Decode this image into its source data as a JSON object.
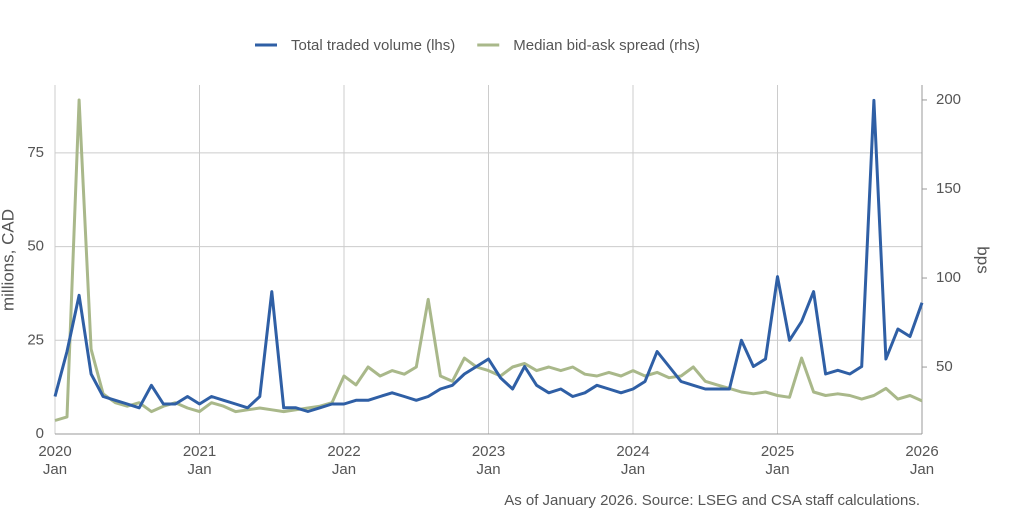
{
  "chart_data": {
    "type": "line",
    "ylabel": "millions, CAD",
    "y2label": "bps",
    "note": "As of January 2026. Source: LSEG and CSA staff calculations.",
    "x": [
      2020,
      2020.083,
      2020.167,
      2020.25,
      2020.333,
      2020.417,
      2020.5,
      2020.583,
      2020.667,
      2020.75,
      2020.833,
      2020.917,
      2021,
      2021.083,
      2021.167,
      2021.25,
      2021.333,
      2021.417,
      2021.5,
      2021.583,
      2021.667,
      2021.75,
      2021.833,
      2021.917,
      2022,
      2022.083,
      2022.167,
      2022.25,
      2022.333,
      2022.417,
      2022.5,
      2022.583,
      2022.667,
      2022.75,
      2022.833,
      2022.917,
      2023,
      2023.083,
      2023.167,
      2023.25,
      2023.333,
      2023.417,
      2023.5,
      2023.583,
      2023.667,
      2023.75,
      2023.833,
      2023.917,
      2024,
      2024.083,
      2024.167,
      2024.25,
      2024.333,
      2024.417,
      2024.5,
      2024.583,
      2024.667,
      2024.75,
      2024.833,
      2024.917,
      2025,
      2025.083,
      2025.167,
      2025.25,
      2025.333,
      2025.417,
      2025.5,
      2025.583,
      2025.667,
      2025.75,
      2025.833,
      2025.917,
      2026
    ],
    "series": [
      {
        "name": "Total traded volume (lhs)",
        "color": "#2f5fa5",
        "axis": "y",
        "values": [
          10,
          22,
          37,
          16,
          10,
          9,
          8,
          7,
          13,
          8,
          8,
          10,
          8,
          10,
          9,
          8,
          7,
          10,
          38,
          7,
          7,
          6,
          7,
          8,
          8,
          9,
          9,
          10,
          11,
          10,
          9,
          10,
          12,
          13,
          16,
          18,
          20,
          15,
          12,
          18,
          13,
          11,
          12,
          10,
          11,
          13,
          12,
          11,
          12,
          14,
          22,
          18,
          14,
          13,
          12,
          12,
          12,
          25,
          18,
          20,
          42,
          25,
          30,
          38,
          16,
          17,
          16,
          18,
          89,
          20,
          28,
          26,
          35
        ]
      },
      {
        "name": "Median bid-ask spread (rhs)",
        "color": "#a9b88a",
        "axis": "y2",
        "values": [
          20,
          22,
          200,
          60,
          35,
          30,
          28,
          30,
          25,
          28,
          30,
          27,
          25,
          30,
          28,
          25,
          26,
          27,
          26,
          25,
          26,
          27,
          28,
          30,
          45,
          40,
          50,
          45,
          48,
          46,
          50,
          88,
          45,
          42,
          55,
          50,
          48,
          45,
          50,
          52,
          48,
          50,
          48,
          50,
          46,
          45,
          47,
          45,
          48,
          45,
          47,
          44,
          45,
          50,
          42,
          40,
          38,
          36,
          35,
          36,
          34,
          33,
          55,
          36,
          34,
          35,
          34,
          32,
          34,
          38,
          32,
          34,
          31
        ]
      }
    ],
    "xlim": [
      2020,
      2026
    ],
    "xticks": [
      {
        "value": 2020,
        "label": "2020 Jan"
      },
      {
        "value": 2021,
        "label": "2021 Jan"
      },
      {
        "value": 2022,
        "label": "2022 Jan"
      },
      {
        "value": 2023,
        "label": "2023 Jan"
      },
      {
        "value": 2024,
        "label": "2024 Jan"
      },
      {
        "value": 2025,
        "label": "2025 Jan"
      },
      {
        "value": 2026,
        "label": "2026 Jan"
      }
    ],
    "ylim": [
      0,
      93.1
    ],
    "yticks": [
      0,
      25,
      50,
      75
    ],
    "y2lim": [
      12.4,
      208.4
    ],
    "y2ticks": [
      50,
      100,
      150,
      200
    ],
    "grid": true,
    "legend": "top"
  }
}
